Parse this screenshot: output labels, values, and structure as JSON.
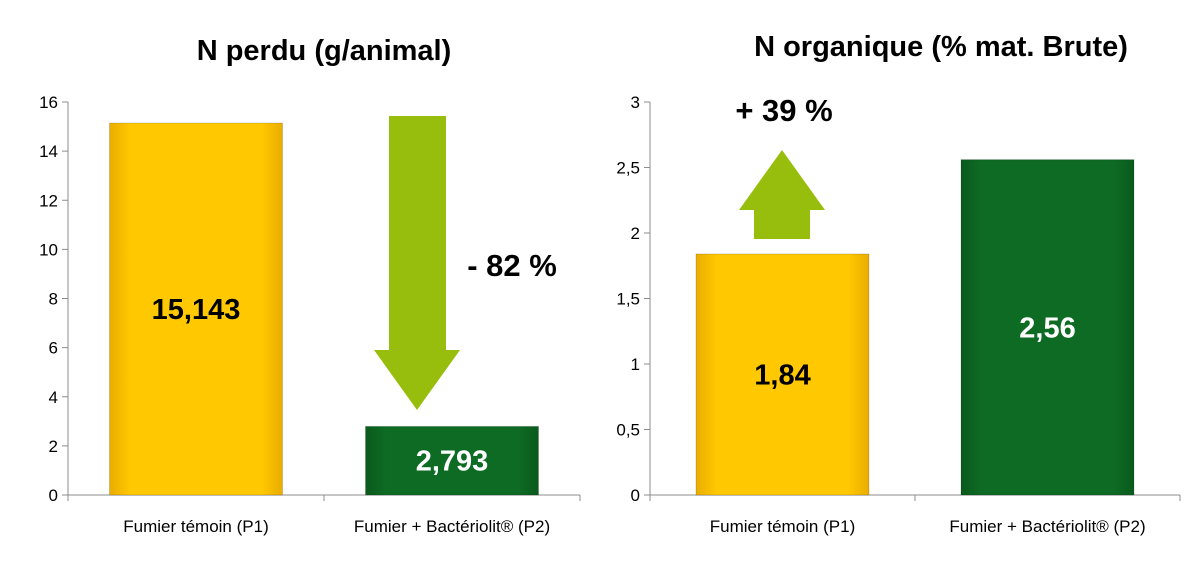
{
  "chart_data": [
    {
      "type": "bar",
      "title": "N perdu (g/animal)",
      "categories": [
        "Fumier témoin (P1)",
        "Fumier + Bactériolit® (P2)"
      ],
      "values": [
        15.143,
        2.793
      ],
      "data_labels": [
        "15,143",
        "2,793"
      ],
      "colors": [
        "#ffc800",
        "#0e6b24"
      ],
      "label_colors": [
        "#000000",
        "#ffffff"
      ],
      "ylim": [
        0,
        16
      ],
      "yticks": [
        "0",
        "2",
        "4",
        "6",
        "8",
        "10",
        "12",
        "14",
        "16"
      ],
      "annotation": {
        "text": "- 82 %",
        "arrow": "down",
        "color": "#97be0d"
      }
    },
    {
      "type": "bar",
      "title": "N organique (% mat. Brute)",
      "categories": [
        "Fumier témoin (P1)",
        "Fumier + Bactériolit® (P2)"
      ],
      "values": [
        1.84,
        2.56
      ],
      "data_labels": [
        "1,84",
        "2,56"
      ],
      "colors": [
        "#ffc800",
        "#0e6b24"
      ],
      "label_colors": [
        "#000000",
        "#ffffff"
      ],
      "ylim": [
        0,
        3
      ],
      "yticks": [
        "0",
        "0,5",
        "1",
        "1,5",
        "2",
        "2,5",
        "3"
      ],
      "annotation": {
        "text": "+ 39 %",
        "arrow": "up",
        "color": "#97be0d"
      }
    }
  ]
}
